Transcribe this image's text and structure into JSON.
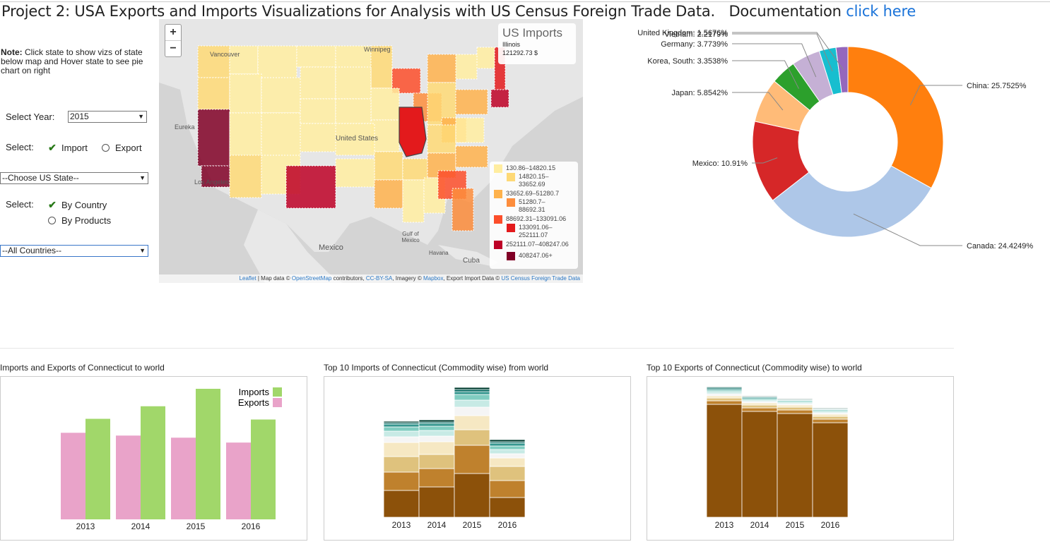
{
  "header": {
    "title": "Project 2: USA Exports and Imports Visualizations for Analysis with US Census Foreign Trade Data.",
    "doc_label": "Documentation",
    "doc_link": "click here"
  },
  "sidebar": {
    "note_bold": "Note:",
    "note_text": " Click state to show vizs of state below map and Hover state to see pie chart on right",
    "year_label": "Select Year:",
    "year_value": "2015",
    "type_label": "Select:",
    "import_label": "Import",
    "export_label": "Export",
    "state_value": "--Choose US State--",
    "by_label": "Select:",
    "by_country_label": "By Country",
    "by_products_label": "By Products",
    "country_value": "--All Countries--"
  },
  "map": {
    "zoom_in": "+",
    "zoom_out": "−",
    "info_title": "US Imports",
    "info_state": "Illinois",
    "info_value": "121292.73 $",
    "labels": {
      "vancouver": "Vancouver",
      "winnipeg": "Winnipeg",
      "eureka": "Eureka",
      "los_angeles": "Los Angeles",
      "united_states": "United States",
      "mexico": "Mexico",
      "gulf": "Gulf of Mexico",
      "havana": "Havana",
      "cuba": "Cuba"
    },
    "legend": [
      {
        "color": "#ffeda0",
        "label": "130.86–14820.15"
      },
      {
        "color": "#fed976",
        "label": "14820.15–33652.69"
      },
      {
        "color": "#feb24c",
        "label": "33652.69–51280.7"
      },
      {
        "color": "#fd8d3c",
        "label": "51280.7–88692.31"
      },
      {
        "color": "#fc4e2a",
        "label": "88692.31–133091.06"
      },
      {
        "color": "#e31a1c",
        "label": "133091.06–252111.07"
      },
      {
        "color": "#bd0026",
        "label": "252111.07–408247.06"
      },
      {
        "color": "#800026",
        "label": "408247.06+"
      }
    ],
    "attribution": {
      "leaflet": "Leaflet",
      "t1": " | Map data © ",
      "osm": "OpenStreetMap",
      "t2": " contributors, ",
      "cc": "CC-BY-SA",
      "t3": ", Imagery © ",
      "mapbox": "Mapbox",
      "t4": ", Export Import Data © ",
      "census": "US Census Foreign Trade Data"
    }
  },
  "pie": {
    "slices": [
      {
        "label": "China: 25.7525%",
        "value": 25.7525,
        "color": "#ff7f0e"
      },
      {
        "label": "Canada: 24.4249%",
        "value": 24.4249,
        "color": "#aec7e8"
      },
      {
        "label": "Mexico: 10.91%",
        "value": 10.91,
        "color": "#d62728"
      },
      {
        "label": "Japan: 5.8542%",
        "value": 5.8542,
        "color": "#ffbb78"
      },
      {
        "label": "Korea, South: 3.3538%",
        "value": 3.3538,
        "color": "#2ca02c"
      },
      {
        "label": "Germany: 3.7739%",
        "value": 3.7739,
        "color": "#c5b0d5"
      },
      {
        "label": "Vietnam: 2.2179%",
        "value": 2.2179,
        "color": "#17becf"
      },
      {
        "label": "United Kingdom: 1.5676%",
        "value": 1.5676,
        "color": "#9467bd"
      }
    ]
  },
  "charts": {
    "c1_title": "Imports and Exports of Connecticut to world",
    "c2_title": "Top 10 Imports of Connecticut (Commodity wise) from world",
    "c3_title": "Top 10 Exports of Connecticut (Commodity wise) to world",
    "years": [
      "2013",
      "2014",
      "2015",
      "2016"
    ],
    "legend_imports": "Imports",
    "legend_exports": "Exports",
    "imports_color": "#a1d76a",
    "exports_color": "#e9a3c9"
  },
  "chart_data": [
    {
      "type": "bar",
      "categories": [
        "2013",
        "2014",
        "2015",
        "2016"
      ],
      "series": [
        {
          "name": "Exports",
          "values": [
            124,
            120,
            117,
            110
          ]
        },
        {
          "name": "Imports",
          "values": [
            144,
            162,
            187,
            143
          ]
        }
      ],
      "ylim": [
        0,
        190
      ]
    },
    {
      "type": "bar",
      "stacked": true,
      "categories": [
        "2013",
        "2014",
        "2015",
        "2016"
      ],
      "colors": [
        "#8c510a",
        "#bf812d",
        "#dfc27d",
        "#f6e8c3",
        "#f5f5f5",
        "#c7eae5",
        "#80cdc1",
        "#35978f",
        "#01665e",
        "#003c30"
      ],
      "stacks": [
        [
          38,
          26,
          22,
          20,
          8,
          8,
          6,
          4,
          2,
          2
        ],
        [
          43,
          26,
          20,
          18,
          8,
          8,
          6,
          4,
          2,
          3
        ],
        [
          62,
          40,
          22,
          20,
          12,
          10,
          8,
          4,
          3,
          3
        ],
        [
          28,
          24,
          20,
          12,
          6,
          6,
          5,
          4,
          2,
          3
        ]
      ],
      "ylim": [
        0,
        185
      ]
    },
    {
      "type": "bar",
      "stacked": true,
      "categories": [
        "2013",
        "2014",
        "2015",
        "2016"
      ],
      "colors": [
        "#8c510a",
        "#bf812d",
        "#dfc27d",
        "#f6e8c3",
        "#f5f5f5",
        "#c7eae5",
        "#80cdc1",
        "#35978f",
        "#01665e",
        "#003c30"
      ],
      "stacks": [
        [
          160,
          5,
          4,
          3,
          3,
          3,
          2,
          2,
          2,
          1
        ],
        [
          150,
          5,
          4,
          3,
          2,
          2,
          2,
          2,
          1,
          1
        ],
        [
          147,
          5,
          4,
          3,
          2,
          2,
          2,
          1,
          1,
          1
        ],
        [
          134,
          5,
          4,
          3,
          2,
          2,
          2,
          1,
          1,
          1
        ]
      ],
      "ylim": [
        0,
        185
      ]
    }
  ]
}
